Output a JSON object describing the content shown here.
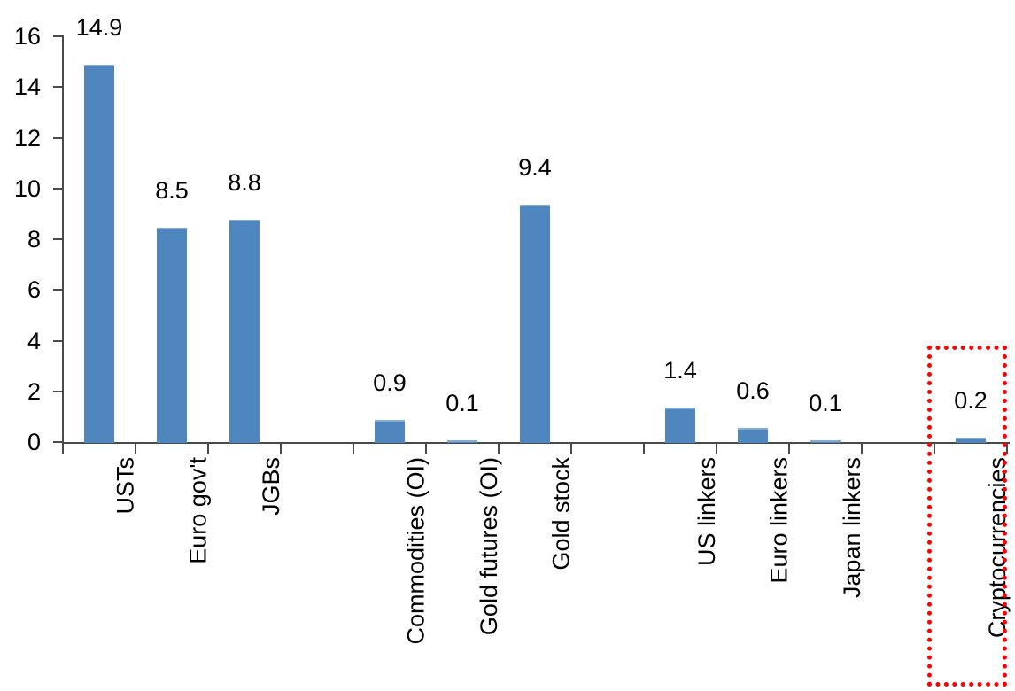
{
  "chart_data": {
    "type": "bar",
    "title": "",
    "xlabel": "",
    "ylabel": "",
    "categories": [
      "USTs",
      "Euro gov't",
      "JGBs",
      "",
      "Commodities (OI)",
      "Gold futures (OI)",
      "Gold stock",
      "",
      "US linkers",
      "Euro linkers",
      "Japan linkers",
      "",
      "Cryptocurrencies"
    ],
    "values": [
      14.9,
      8.5,
      8.8,
      null,
      0.9,
      0.1,
      9.4,
      null,
      1.4,
      0.6,
      0.1,
      null,
      0.2
    ],
    "data_labels": [
      "14.9",
      "8.5",
      "8.8",
      null,
      "0.9",
      "0.1",
      "9.4",
      null,
      "1.4",
      "0.6",
      "0.1",
      null,
      "0.2"
    ],
    "y_ticks": [
      "0",
      "2",
      "4",
      "6",
      "8",
      "10",
      "12",
      "14",
      "16"
    ],
    "ylim": [
      0,
      16
    ],
    "grid": false,
    "legend": false,
    "colors": {
      "bar_fill": "#4E86BD",
      "bar_top_edge": "#84ABD4",
      "axis": "#4a4a4a",
      "text": "#000000",
      "highlight_border": "#FF0000"
    },
    "highlight": {
      "category": "Cryptocurrencies",
      "slot_index": 12,
      "border_style": "dotted",
      "note": "red dotted rectangle around Cryptocurrencies bar and label"
    }
  }
}
